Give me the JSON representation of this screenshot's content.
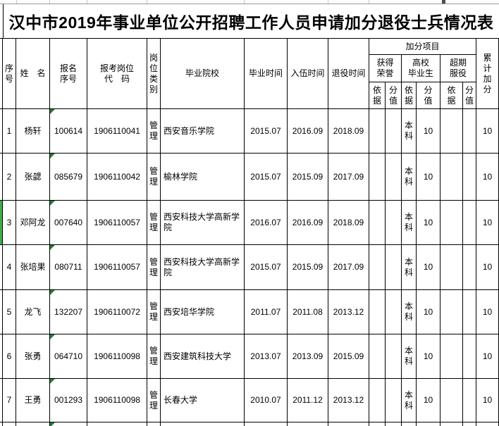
{
  "title": "汉中市2019年事业单位公开招聘工作人员申请加分退役士兵情况表",
  "header": {
    "serial": "序\n号",
    "name": "姓　名",
    "reg_no": "报名\n序号",
    "post_code": "报考岗位\n代　码",
    "post_type": "岗\n位\n类\n别",
    "school": "毕业院校",
    "grad_time": "毕业时间",
    "enlist_time": "入伍时间",
    "retire_time": "退役时间",
    "bonus_group": "加分项目",
    "honor": "获得\n荣誉",
    "college_grad": "高校\n毕业生",
    "overdue_service": "超期\n服役",
    "basis": "依\n据",
    "score": "分\n值",
    "total": "累\n计\n加\n分"
  },
  "rows": [
    {
      "no": "1",
      "name": "杨轩",
      "reg": "100614",
      "code": "1906110041",
      "type": "管\n理",
      "school": "西安音乐学院",
      "grad": "2015.07",
      "enlist": "2016.09",
      "retire": "2018.09",
      "honor_basis": "",
      "honor_score": "",
      "grad_basis": "本\n科",
      "grad_score": "10",
      "overdue_basis": "",
      "overdue_score": "",
      "total": "10"
    },
    {
      "no": "2",
      "name": "张勰",
      "reg": "085679",
      "code": "1906110042",
      "type": "管\n理",
      "school": "榆林学院",
      "grad": "2015.07",
      "enlist": "2015.09",
      "retire": "2017.09",
      "honor_basis": "",
      "honor_score": "",
      "grad_basis": "本\n科",
      "grad_score": "10",
      "overdue_basis": "",
      "overdue_score": "",
      "total": "10"
    },
    {
      "no": "3",
      "name": "邓阿龙",
      "reg": "007640",
      "code": "1906110057",
      "type": "管\n理",
      "school": "西安科技大学高新学院",
      "grad": "2016.07",
      "enlist": "2016.09",
      "retire": "2018.09",
      "honor_basis": "",
      "honor_score": "",
      "grad_basis": "本\n科",
      "grad_score": "10",
      "overdue_basis": "",
      "overdue_score": "",
      "total": "10"
    },
    {
      "no": "4",
      "name": "张培果",
      "reg": "080711",
      "code": "1906110057",
      "type": "管\n理",
      "school": "西安科技大学高新学院",
      "grad": "2015.07",
      "enlist": "2015.09",
      "retire": "2017.09",
      "honor_basis": "",
      "honor_score": "",
      "grad_basis": "本\n科",
      "grad_score": "10",
      "overdue_basis": "",
      "overdue_score": "",
      "total": "10"
    },
    {
      "no": "5",
      "name": "龙飞",
      "reg": "132207",
      "code": "1906110072",
      "type": "管\n理",
      "school": "西安培华学院",
      "grad": "2011.07",
      "enlist": "2011.08",
      "retire": "2013.12",
      "honor_basis": "",
      "honor_score": "",
      "grad_basis": "本\n科",
      "grad_score": "10",
      "overdue_basis": "",
      "overdue_score": "",
      "total": "10"
    },
    {
      "no": "6",
      "name": "张勇",
      "reg": "064710",
      "code": "1906110098",
      "type": "管\n理",
      "school": "西安建筑科技大学",
      "grad": "2013.07",
      "enlist": "2013.09",
      "retire": "2015.09",
      "honor_basis": "",
      "honor_score": "",
      "grad_basis": "本\n科",
      "grad_score": "10",
      "overdue_basis": "",
      "overdue_score": "",
      "total": "10"
    },
    {
      "no": "7",
      "name": "王勇",
      "reg": "001293",
      "code": "1906110098",
      "type": "管\n理",
      "school": "长春大学",
      "grad": "2010.07",
      "enlist": "2011.12",
      "retire": "2013.12",
      "honor_basis": "",
      "honor_score": "",
      "grad_basis": "本\n科",
      "grad_score": "10",
      "overdue_basis": "",
      "overdue_score": "",
      "total": "10"
    }
  ],
  "colors": {
    "grid_line": "#000000",
    "fill_green": "#3fae49",
    "error_triangle_green": "#267a36",
    "remnant_gray": "#9a9a9a"
  }
}
